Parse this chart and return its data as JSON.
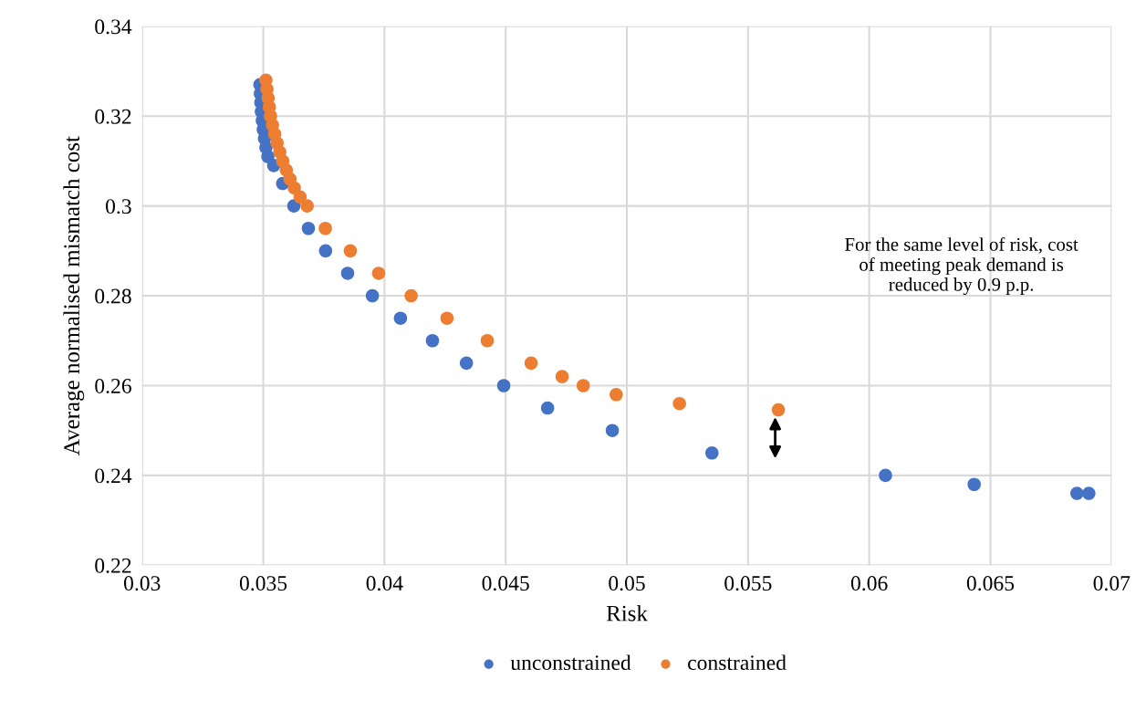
{
  "chart_data": {
    "type": "scatter",
    "xlabel": "Risk",
    "ylabel": "Average normalised mismatch cost",
    "xlim": [
      0.03,
      0.07
    ],
    "xticks": [
      0.03,
      0.035,
      0.04,
      0.045,
      0.05,
      0.055,
      0.06,
      0.065,
      0.07
    ],
    "ylim": [
      0.22,
      0.34
    ],
    "yticks": [
      0.22,
      0.24,
      0.26,
      0.28,
      0.3,
      0.32,
      0.34
    ],
    "grid": true,
    "legend": "bottom",
    "marker": "circle",
    "series": [
      {
        "name": "unconstrained",
        "color": "#4472c4",
        "x": [
          0.03486,
          0.03488,
          0.0349,
          0.03492,
          0.03496,
          0.035,
          0.03505,
          0.03511,
          0.03519,
          0.03543,
          0.0358,
          0.03626,
          0.03686,
          0.03757,
          0.03848,
          0.0395,
          0.04066,
          0.04198,
          0.04338,
          0.04492,
          0.04673,
          0.0494,
          0.05351,
          0.06067,
          0.06433,
          0.06857,
          0.06906
        ],
        "values": [
          0.327,
          0.325,
          0.323,
          0.321,
          0.319,
          0.317,
          0.315,
          0.313,
          0.311,
          0.309,
          0.305,
          0.3,
          0.295,
          0.29,
          0.285,
          0.28,
          0.275,
          0.27,
          0.265,
          0.26,
          0.255,
          0.25,
          0.245,
          0.24,
          0.238,
          0.236,
          0.236
        ]
      },
      {
        "name": "constrained",
        "color": "#ed7d31",
        "x": [
          0.03511,
          0.03515,
          0.0352,
          0.03525,
          0.0353,
          0.03538,
          0.03547,
          0.03557,
          0.03568,
          0.0358,
          0.03595,
          0.0361,
          0.03628,
          0.03652,
          0.03681,
          0.03756,
          0.03859,
          0.03976,
          0.0411,
          0.04258,
          0.04424,
          0.04605,
          0.04733,
          0.0482,
          0.04956,
          0.05217,
          0.05625
        ],
        "values": [
          0.328,
          0.326,
          0.324,
          0.322,
          0.32,
          0.318,
          0.316,
          0.314,
          0.312,
          0.31,
          0.308,
          0.306,
          0.304,
          0.302,
          0.3,
          0.295,
          0.29,
          0.285,
          0.28,
          0.275,
          0.27,
          0.265,
          0.262,
          0.26,
          0.258,
          0.256,
          0.2546
        ]
      }
    ],
    "annotations": [
      "For the same level of risk, cost\nof meeting peak demand is\nreduced by 0.9 p.p."
    ]
  }
}
